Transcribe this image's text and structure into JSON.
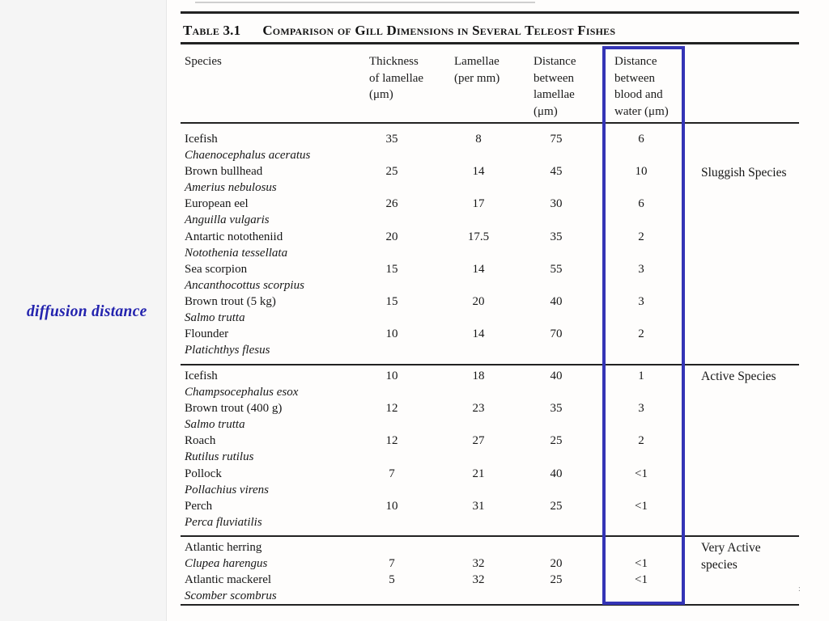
{
  "annotation": {
    "text": "diffusion distance",
    "color": "#2323ae"
  },
  "highlight_box": {
    "color": "#3434b6"
  },
  "artifact_mark": ":",
  "table": {
    "label": "Table 3.1",
    "title": "Comparison of Gill Dimensions in Several Teleost Fishes",
    "species_header": "Species",
    "columns": [
      {
        "lines": [
          "Thickness",
          "of lamellae",
          "(μm)"
        ]
      },
      {
        "lines": [
          "Lamellae",
          "(per mm)"
        ]
      },
      {
        "lines": [
          "Distance",
          "between",
          "lamellae",
          "(μm)"
        ]
      },
      {
        "lines": [
          "Distance",
          "between",
          "blood and",
          "water (μm)"
        ],
        "highlighted": true
      }
    ],
    "sections": [
      {
        "group_label": [
          "Sluggish Species"
        ],
        "rows": [
          {
            "common": "Icefish",
            "scientific": "Chaenocephalus aceratus",
            "values": [
              "35",
              "8",
              "75",
              "6"
            ]
          },
          {
            "common": "Brown bullhead",
            "scientific": "Amerius nebulosus",
            "values": [
              "25",
              "14",
              "45",
              "10"
            ]
          },
          {
            "common": "European eel",
            "scientific": "Anguilla vulgaris",
            "values": [
              "26",
              "17",
              "30",
              "6"
            ]
          },
          {
            "common": "Antartic nototheniid",
            "scientific": "Notothenia tessellata",
            "values": [
              "20",
              "17.5",
              "35",
              "2"
            ]
          },
          {
            "common": "Sea scorpion",
            "scientific": "Ancanthocottus scorpius",
            "values": [
              "15",
              "14",
              "55",
              "3"
            ]
          },
          {
            "common": "Brown trout (5 kg)",
            "scientific": "Salmo trutta",
            "values": [
              "15",
              "20",
              "40",
              "3"
            ]
          },
          {
            "common": "Flounder",
            "scientific": "Platichthys flesus",
            "values": [
              "10",
              "14",
              "70",
              "2"
            ]
          }
        ]
      },
      {
        "group_label": [
          "Active Species"
        ],
        "rows": [
          {
            "common": "Icefish",
            "scientific": "Champsocephalus esox",
            "values": [
              "10",
              "18",
              "40",
              "1"
            ]
          },
          {
            "common": "Brown trout (400 g)",
            "scientific": "Salmo trutta",
            "values": [
              "12",
              "23",
              "35",
              "3"
            ]
          },
          {
            "common": "Roach",
            "scientific": "Rutilus rutilus",
            "values": [
              "12",
              "27",
              "25",
              "2"
            ]
          },
          {
            "common": "Pollock",
            "scientific": "Pollachius virens",
            "values": [
              "7",
              "21",
              "40",
              "<1"
            ]
          },
          {
            "common": "Perch",
            "scientific": "Perca fluviatilis",
            "values": [
              "10",
              "31",
              "25",
              "<1"
            ]
          }
        ]
      },
      {
        "group_label": [
          "Very Active",
          "species"
        ],
        "rows": [
          {
            "common": "Atlantic herring",
            "scientific": "Clupea harengus",
            "values": [
              "7",
              "32",
              "20",
              "<1"
            ],
            "values_line": 2
          },
          {
            "common": "Atlantic mackerel",
            "scientific": "Scomber scombrus",
            "values": [
              "5",
              "32",
              "25",
              "<1"
            ]
          }
        ]
      }
    ]
  }
}
